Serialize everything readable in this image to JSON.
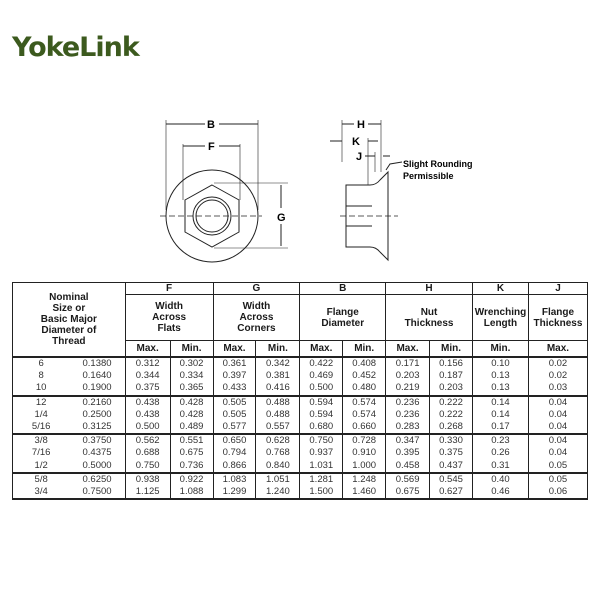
{
  "brand": {
    "logo_text": "YokeLink",
    "accent": "#e8893a",
    "brand_green": "#3c5a1e"
  },
  "diagram": {
    "labels": {
      "B": "B",
      "F": "F",
      "G": "G",
      "H": "H",
      "K": "K",
      "J": "J"
    },
    "note_line1": "Slight Rounding",
    "note_line2": "Permissible"
  },
  "table": {
    "nominal_header": [
      "Nominal",
      "Size or",
      "Basic Major",
      "Diameter of",
      "Thread"
    ],
    "columns": [
      {
        "letter": "F",
        "name": [
          "Width",
          "Across",
          "Flats"
        ],
        "sub": [
          "Max.",
          "Min."
        ]
      },
      {
        "letter": "G",
        "name": [
          "Width",
          "Across",
          "Corners"
        ],
        "sub": [
          "Max.",
          "Min."
        ]
      },
      {
        "letter": "B",
        "name": [
          "Flange",
          "Diameter"
        ],
        "sub": [
          "Max.",
          "Min."
        ]
      },
      {
        "letter": "H",
        "name": [
          "Nut",
          "Thickness"
        ],
        "sub": [
          "Max.",
          "Min."
        ]
      },
      {
        "letter": "K",
        "name": [
          "Wrenching",
          "Length"
        ],
        "sub": [
          "Min."
        ]
      },
      {
        "letter": "J",
        "name": [
          "Flange",
          "Thickness"
        ],
        "sub": [
          "Max."
        ]
      }
    ],
    "groups": [
      [
        [
          "6",
          "0.1380",
          "0.312",
          "0.302",
          "0.361",
          "0.342",
          "0.422",
          "0.408",
          "0.171",
          "0.156",
          "0.10",
          "0.02"
        ],
        [
          "8",
          "0.1640",
          "0.344",
          "0.334",
          "0.397",
          "0.381",
          "0.469",
          "0.452",
          "0.203",
          "0.187",
          "0.13",
          "0.02"
        ],
        [
          "10",
          "0.1900",
          "0.375",
          "0.365",
          "0.433",
          "0.416",
          "0.500",
          "0.480",
          "0.219",
          "0.203",
          "0.13",
          "0.03"
        ]
      ],
      [
        [
          "12",
          "0.2160",
          "0.438",
          "0.428",
          "0.505",
          "0.488",
          "0.594",
          "0.574",
          "0.236",
          "0.222",
          "0.14",
          "0.04"
        ],
        [
          "1/4",
          "0.2500",
          "0.438",
          "0.428",
          "0.505",
          "0.488",
          "0.594",
          "0.574",
          "0.236",
          "0.222",
          "0.14",
          "0.04"
        ],
        [
          "5/16",
          "0.3125",
          "0.500",
          "0.489",
          "0.577",
          "0.557",
          "0.680",
          "0.660",
          "0.283",
          "0.268",
          "0.17",
          "0.04"
        ]
      ],
      [
        [
          "3/8",
          "0.3750",
          "0.562",
          "0.551",
          "0.650",
          "0.628",
          "0.750",
          "0.728",
          "0.347",
          "0.330",
          "0.23",
          "0.04"
        ],
        [
          "7/16",
          "0.4375",
          "0.688",
          "0.675",
          "0.794",
          "0.768",
          "0.937",
          "0.910",
          "0.395",
          "0.375",
          "0.26",
          "0.04"
        ],
        [
          "1/2",
          "0.5000",
          "0.750",
          "0.736",
          "0.866",
          "0.840",
          "1.031",
          "1.000",
          "0.458",
          "0.437",
          "0.31",
          "0.05"
        ]
      ],
      [
        [
          "5/8",
          "0.6250",
          "0.938",
          "0.922",
          "1.083",
          "1.051",
          "1.281",
          "1.248",
          "0.569",
          "0.545",
          "0.40",
          "0.05"
        ],
        [
          "3/4",
          "0.7500",
          "1.125",
          "1.088",
          "1.299",
          "1.240",
          "1.500",
          "1.460",
          "0.675",
          "0.627",
          "0.46",
          "0.06"
        ]
      ]
    ]
  }
}
